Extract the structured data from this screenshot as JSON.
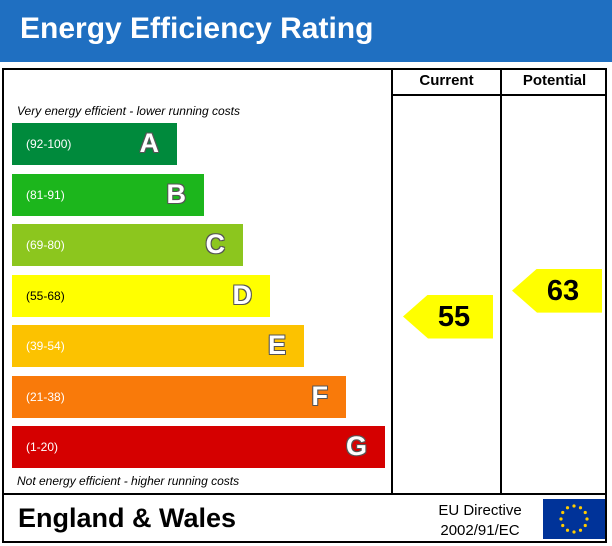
{
  "header": {
    "title": "Energy Efficiency Rating",
    "bg_color": "#1f6fc1"
  },
  "columns": {
    "current": "Current",
    "potential": "Potential"
  },
  "notes": {
    "top": "Very energy efficient - lower running costs",
    "bottom": "Not energy efficient - higher running costs"
  },
  "chart_data": {
    "type": "bar",
    "title": "Energy Efficiency Rating",
    "bands": [
      {
        "letter": "A",
        "range": "(92-100)",
        "color": "#008a3c"
      },
      {
        "letter": "B",
        "range": "(81-91)",
        "color": "#1cb61c"
      },
      {
        "letter": "C",
        "range": "(69-80)",
        "color": "#8cc61e"
      },
      {
        "letter": "D",
        "range": "(55-68)",
        "color": "#ffff00"
      },
      {
        "letter": "E",
        "range": "(39-54)",
        "color": "#fcc200"
      },
      {
        "letter": "F",
        "range": "(21-38)",
        "color": "#f97a0a"
      },
      {
        "letter": "G",
        "range": "(1-20)",
        "color": "#d50000"
      }
    ],
    "current": {
      "value": 55,
      "band": "D"
    },
    "potential": {
      "value": 63,
      "band": "D"
    }
  },
  "footer": {
    "region": "England & Wales",
    "directive_line1": "EU Directive",
    "directive_line2": "2002/91/EC"
  }
}
